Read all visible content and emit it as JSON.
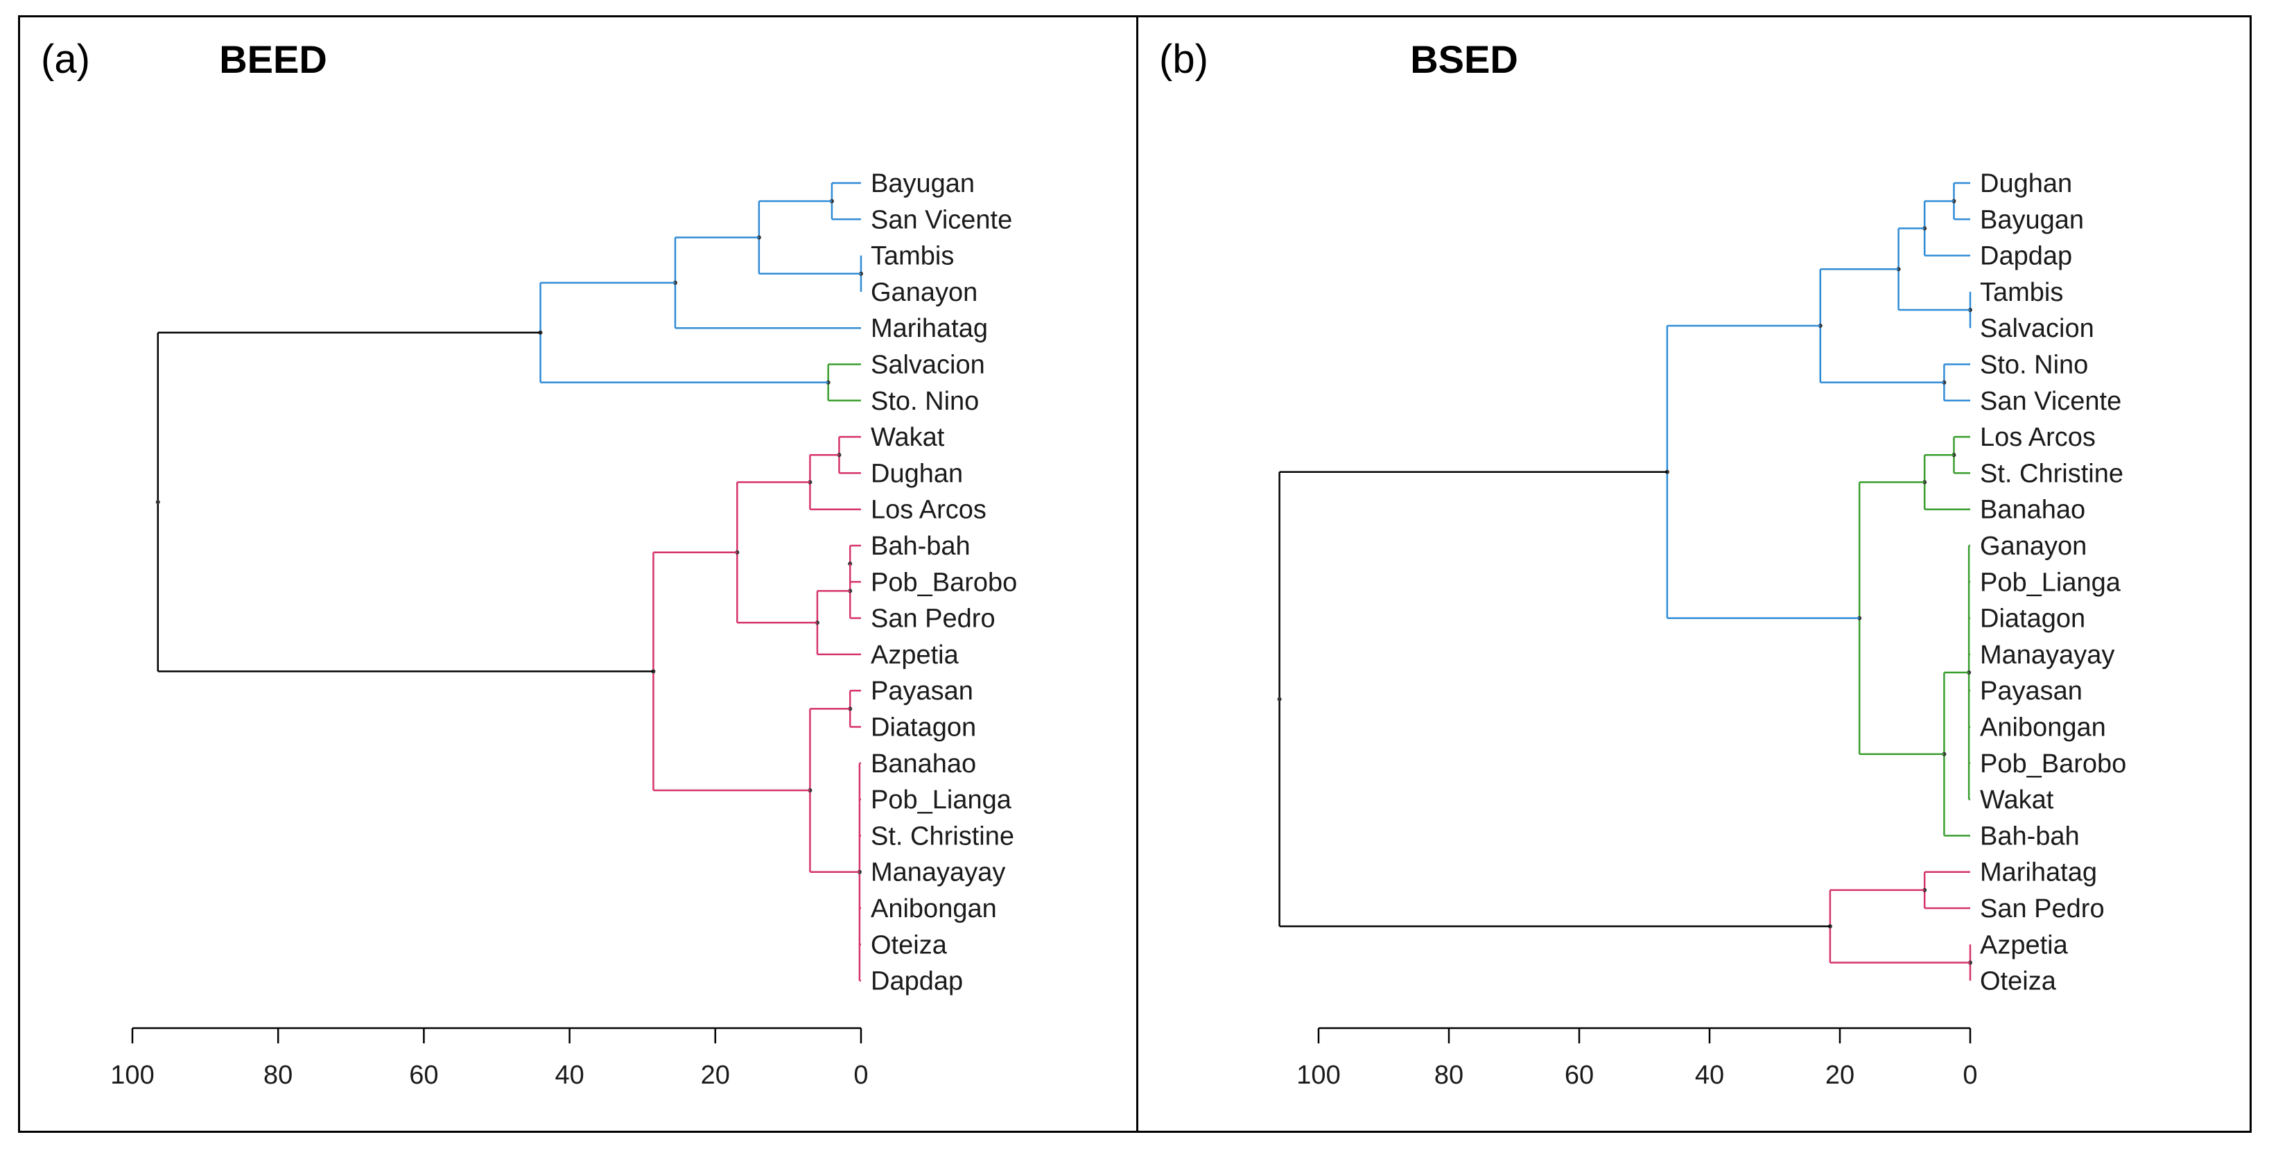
{
  "panels": [
    {
      "panel_label": "(a)",
      "title": "BEED",
      "chart_data": {
        "type": "dendrogram",
        "title": "BEED",
        "axis": {
          "ticks": [
            100,
            80,
            60,
            40,
            20,
            0
          ],
          "range": [
            100,
            0
          ]
        },
        "leaves": [
          "Bayugan",
          "San Vicente",
          "Tambis",
          "Ganayon",
          "Marihatag",
          "Salvacion",
          "Sto. Nino",
          "Wakat",
          "Dughan",
          "Los Arcos",
          "Bah-bah",
          "Pob_Barobo",
          "San Pedro",
          "Azpetia",
          "Payasan",
          "Diatagon",
          "Banahao",
          "Pob_Lianga",
          "St. Christine",
          "Manayayay",
          "Anibongan",
          "Oteiza",
          "Dapdap"
        ],
        "colors": {
          "blue": "#2f8bd6",
          "green": "#3a9e2f",
          "red": "#d6336c",
          "root": "#000000"
        },
        "merges": [
          {
            "id": "b1",
            "children": [
              "Bayugan",
              "San Vicente"
            ],
            "height": 4,
            "color": "blue"
          },
          {
            "id": "b2",
            "children": [
              "Tambis",
              "Ganayon"
            ],
            "height": 0,
            "color": "blue"
          },
          {
            "id": "b3",
            "children": [
              "b1",
              "b2"
            ],
            "height": 14,
            "color": "blue"
          },
          {
            "id": "b4",
            "children": [
              "b3",
              "Marihatag"
            ],
            "height": 25.5,
            "color": "blue"
          },
          {
            "id": "g1",
            "children": [
              "Salvacion",
              "Sto. Nino"
            ],
            "height": 4.5,
            "color": "green"
          },
          {
            "id": "bg",
            "children": [
              "b4",
              "g1"
            ],
            "height": 44,
            "color": "blue"
          },
          {
            "id": "r1",
            "children": [
              "Wakat",
              "Dughan"
            ],
            "height": 3,
            "color": "red"
          },
          {
            "id": "r2",
            "children": [
              "r1",
              "Los Arcos"
            ],
            "height": 7,
            "color": "red"
          },
          {
            "id": "r3",
            "children": [
              "Bah-bah",
              "Pob_Barobo"
            ],
            "height": 1.5,
            "color": "red"
          },
          {
            "id": "r4",
            "children": [
              "r3",
              "San Pedro"
            ],
            "height": 1.5,
            "color": "red"
          },
          {
            "id": "r5",
            "children": [
              "r4",
              "Azpetia"
            ],
            "height": 6,
            "color": "red"
          },
          {
            "id": "r6",
            "children": [
              "r2",
              "r5"
            ],
            "height": 17,
            "color": "red"
          },
          {
            "id": "r7",
            "children": [
              "Payasan",
              "Diatagon"
            ],
            "height": 1.5,
            "color": "red"
          },
          {
            "id": "r8",
            "children": [
              "Banahao",
              "Pob_Lianga",
              "St. Christine",
              "Manayayay",
              "Anibongan",
              "Oteiza",
              "Dapdap"
            ],
            "height": 0.2,
            "color": "red"
          },
          {
            "id": "r9",
            "children": [
              "r7",
              "r8"
            ],
            "height": 7,
            "color": "red"
          },
          {
            "id": "r10",
            "children": [
              "r6",
              "r9"
            ],
            "height": 28.5,
            "color": "red"
          },
          {
            "id": "root",
            "children": [
              "bg",
              "r10"
            ],
            "height": 96.5,
            "color": "root"
          }
        ]
      }
    },
    {
      "panel_label": "(b)",
      "title": "BSED",
      "chart_data": {
        "type": "dendrogram",
        "title": "BSED",
        "axis": {
          "ticks": [
            100,
            80,
            60,
            40,
            20,
            0
          ],
          "range": [
            100,
            0
          ]
        },
        "leaves": [
          "Dughan",
          "Bayugan",
          "Dapdap",
          "Tambis",
          "Salvacion",
          "Sto. Nino",
          "San Vicente",
          "Los Arcos",
          "St. Christine",
          "Banahao",
          "Ganayon",
          "Pob_Lianga",
          "Diatagon",
          "Manayayay",
          "Payasan",
          "Anibongan",
          "Pob_Barobo",
          "Wakat",
          "Bah-bah",
          "Marihatag",
          "San Pedro",
          "Azpetia",
          "Oteiza"
        ],
        "colors": {
          "blue": "#2f8bd6",
          "green": "#3a9e2f",
          "red": "#d6336c",
          "root": "#000000"
        },
        "merges": [
          {
            "id": "b1",
            "children": [
              "Dughan",
              "Bayugan"
            ],
            "height": 2.5,
            "color": "blue"
          },
          {
            "id": "b2",
            "children": [
              "b1",
              "Dapdap"
            ],
            "height": 7,
            "color": "blue"
          },
          {
            "id": "b3",
            "children": [
              "Tambis",
              "Salvacion"
            ],
            "height": 0,
            "color": "blue"
          },
          {
            "id": "b4",
            "children": [
              "b2",
              "b3"
            ],
            "height": 11,
            "color": "blue"
          },
          {
            "id": "b5",
            "children": [
              "Sto. Nino",
              "San Vicente"
            ],
            "height": 4,
            "color": "blue"
          },
          {
            "id": "b6",
            "children": [
              "b4",
              "b5"
            ],
            "height": 23,
            "color": "blue"
          },
          {
            "id": "g1",
            "children": [
              "Los Arcos",
              "St. Christine"
            ],
            "height": 2.5,
            "color": "green"
          },
          {
            "id": "g2",
            "children": [
              "g1",
              "Banahao"
            ],
            "height": 7,
            "color": "green"
          },
          {
            "id": "g3",
            "children": [
              "Ganayon",
              "Pob_Lianga",
              "Diatagon",
              "Manayayay",
              "Payasan",
              "Anibongan",
              "Pob_Barobo",
              "Wakat"
            ],
            "height": 0.2,
            "color": "green"
          },
          {
            "id": "g4",
            "children": [
              "g3",
              "Bah-bah"
            ],
            "height": 4,
            "color": "green"
          },
          {
            "id": "g5",
            "children": [
              "g2",
              "g4"
            ],
            "height": 17,
            "color": "green"
          },
          {
            "id": "bg",
            "children": [
              "b6",
              "g5"
            ],
            "height": 46.5,
            "color": "blue"
          },
          {
            "id": "r1",
            "children": [
              "Marihatag",
              "San Pedro"
            ],
            "height": 7,
            "color": "red"
          },
          {
            "id": "r2",
            "children": [
              "Azpetia",
              "Oteiza"
            ],
            "height": 0,
            "color": "red"
          },
          {
            "id": "r3",
            "children": [
              "r1",
              "r2"
            ],
            "height": 21.5,
            "color": "red"
          },
          {
            "id": "root",
            "children": [
              "bg",
              "r3"
            ],
            "height": 106,
            "color": "root"
          }
        ]
      }
    }
  ]
}
